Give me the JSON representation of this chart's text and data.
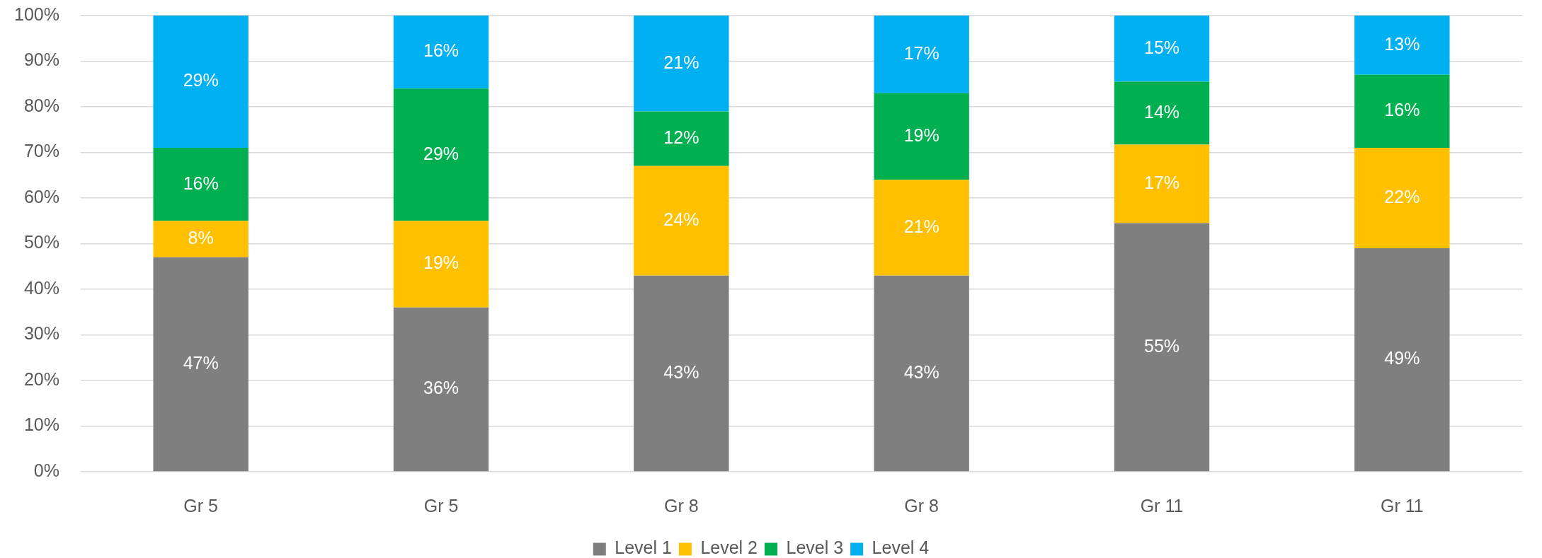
{
  "chart_data": {
    "type": "bar",
    "stacked": true,
    "categories": [
      "Gr 5",
      "Gr 5",
      "Gr 8",
      "Gr 8",
      "Gr 11",
      "Gr 11"
    ],
    "series": [
      {
        "name": "Level 1",
        "color": "#7f7f7f",
        "values": [
          47,
          36,
          43,
          43,
          54.5,
          49
        ],
        "value_labels": [
          "47%",
          "36%",
          "43%",
          "43%",
          "55%",
          "49%"
        ]
      },
      {
        "name": "Level 2",
        "color": "#ffc000",
        "values": [
          8,
          19,
          24,
          21,
          17.2,
          22
        ],
        "value_labels": [
          "8%",
          "19%",
          "24%",
          "21%",
          "17%",
          "22%"
        ]
      },
      {
        "name": "Level 3",
        "color": "#00b050",
        "values": [
          16,
          29,
          12,
          19,
          13.8,
          16
        ],
        "value_labels": [
          "16%",
          "29%",
          "12%",
          "19%",
          "14%",
          "16%"
        ]
      },
      {
        "name": "Level 4",
        "color": "#00b0f0",
        "values": [
          29,
          16,
          21,
          17,
          14.5,
          13
        ],
        "value_labels": [
          "29%",
          "16%",
          "21%",
          "17%",
          "15%",
          "13%"
        ]
      }
    ],
    "ylim": [
      0,
      100
    ],
    "yticks": [
      {
        "value": 0,
        "label": "0%"
      },
      {
        "value": 10,
        "label": "10%"
      },
      {
        "value": 20,
        "label": "20%"
      },
      {
        "value": 30,
        "label": "30%"
      },
      {
        "value": 40,
        "label": "40%"
      },
      {
        "value": 50,
        "label": "50%"
      },
      {
        "value": 60,
        "label": "60%"
      },
      {
        "value": 70,
        "label": "70%"
      },
      {
        "value": 80,
        "label": "80%"
      },
      {
        "value": 90,
        "label": "90%"
      },
      {
        "value": 100,
        "label": "100%"
      }
    ],
    "grid": "y",
    "legend": "bottom"
  }
}
